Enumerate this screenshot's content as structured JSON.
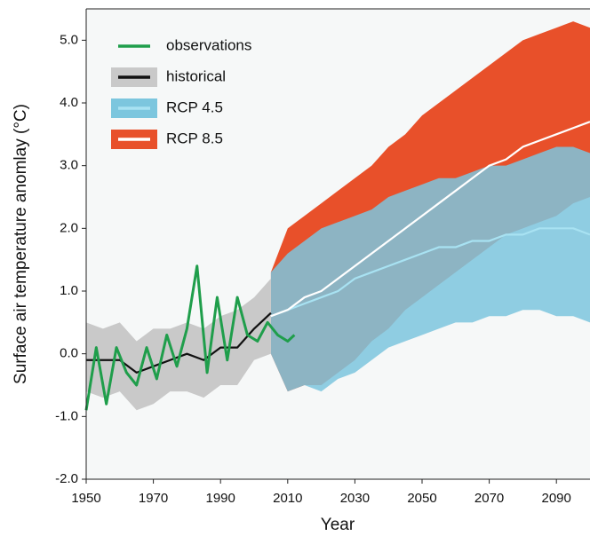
{
  "chart_data": {
    "type": "line",
    "x_label": "Year",
    "y_label": "Surface air temperature anomlay (°C)",
    "xlim": [
      1950,
      2100
    ],
    "xticks": [
      1950,
      1970,
      1990,
      2010,
      2030,
      2050,
      2070,
      2090
    ],
    "ylim": [
      -2,
      5.5
    ],
    "yticks": [
      {
        "value": -2,
        "label": "-2.0"
      },
      {
        "value": -1,
        "label": "-1.0"
      },
      {
        "value": 0,
        "label": "0.0"
      },
      {
        "value": 1,
        "label": "1.0"
      },
      {
        "value": 2,
        "label": "2.0"
      },
      {
        "value": 3,
        "label": "3.0"
      },
      {
        "value": 4,
        "label": "4.0"
      },
      {
        "value": 5,
        "label": "5.0"
      }
    ],
    "legend": "upper left",
    "series": [
      {
        "name": "observations",
        "color": "#1f9e4b",
        "x": [
          1950,
          1953,
          1956,
          1959,
          1962,
          1965,
          1968,
          1971,
          1974,
          1977,
          1980,
          1983,
          1986,
          1989,
          1992,
          1995,
          1998,
          2001,
          2004,
          2007,
          2010,
          2012
        ],
        "values": [
          -0.9,
          0.1,
          -0.8,
          0.1,
          -0.3,
          -0.5,
          0.1,
          -0.4,
          0.3,
          -0.2,
          0.4,
          1.4,
          -0.3,
          0.9,
          -0.1,
          0.9,
          0.3,
          0.2,
          0.5,
          0.3,
          0.2,
          0.3
        ]
      },
      {
        "name": "historical",
        "color": "#111111",
        "band_color": "#c9c9c9",
        "x": [
          1950,
          1955,
          1960,
          1965,
          1970,
          1975,
          1980,
          1985,
          1990,
          1995,
          2000,
          2005
        ],
        "values": [
          -0.1,
          -0.1,
          -0.1,
          -0.3,
          -0.2,
          -0.1,
          0.0,
          -0.1,
          0.1,
          0.1,
          0.4,
          0.65
        ],
        "lower": [
          -0.6,
          -0.7,
          -0.6,
          -0.9,
          -0.8,
          -0.6,
          -0.6,
          -0.7,
          -0.5,
          -0.5,
          -0.1,
          0.0
        ],
        "upper": [
          0.5,
          0.4,
          0.5,
          0.2,
          0.4,
          0.4,
          0.5,
          0.4,
          0.6,
          0.7,
          0.9,
          1.2
        ]
      },
      {
        "name": "RCP 4.5",
        "color": "#a8e2f2",
        "band_color": "#7cc6de",
        "x": [
          2005,
          2010,
          2015,
          2020,
          2025,
          2030,
          2035,
          2040,
          2045,
          2050,
          2055,
          2060,
          2065,
          2070,
          2075,
          2080,
          2085,
          2090,
          2095,
          2100
        ],
        "values": [
          0.6,
          0.7,
          0.8,
          0.9,
          1.0,
          1.2,
          1.3,
          1.4,
          1.5,
          1.6,
          1.7,
          1.7,
          1.8,
          1.8,
          1.9,
          1.9,
          2.0,
          2.0,
          2.0,
          1.9
        ],
        "lower": [
          0.0,
          -0.6,
          -0.5,
          -0.6,
          -0.4,
          -0.3,
          -0.1,
          0.1,
          0.2,
          0.3,
          0.4,
          0.5,
          0.5,
          0.6,
          0.6,
          0.7,
          0.7,
          0.6,
          0.6,
          0.5
        ],
        "upper": [
          1.3,
          1.6,
          1.8,
          2.0,
          2.1,
          2.2,
          2.3,
          2.5,
          2.6,
          2.7,
          2.8,
          2.8,
          2.9,
          3.0,
          3.0,
          3.1,
          3.2,
          3.3,
          3.3,
          3.2
        ]
      },
      {
        "name": "RCP 8.5",
        "color": "#ffffff",
        "band_color": "#e8502a",
        "x": [
          2005,
          2010,
          2015,
          2020,
          2025,
          2030,
          2035,
          2040,
          2045,
          2050,
          2055,
          2060,
          2065,
          2070,
          2075,
          2080,
          2085,
          2090,
          2095,
          2100
        ],
        "values": [
          0.6,
          0.7,
          0.9,
          1.0,
          1.2,
          1.4,
          1.6,
          1.8,
          2.0,
          2.2,
          2.4,
          2.6,
          2.8,
          3.0,
          3.1,
          3.3,
          3.4,
          3.5,
          3.6,
          3.7
        ],
        "lower": [
          0.0,
          -0.6,
          -0.5,
          -0.5,
          -0.3,
          -0.1,
          0.2,
          0.4,
          0.7,
          0.9,
          1.1,
          1.3,
          1.5,
          1.7,
          1.9,
          2.0,
          2.1,
          2.2,
          2.4,
          2.5
        ],
        "upper": [
          1.3,
          2.0,
          2.2,
          2.4,
          2.6,
          2.8,
          3.0,
          3.3,
          3.5,
          3.8,
          4.0,
          4.2,
          4.4,
          4.6,
          4.8,
          5.0,
          5.1,
          5.2,
          5.3,
          5.2
        ]
      }
    ]
  }
}
